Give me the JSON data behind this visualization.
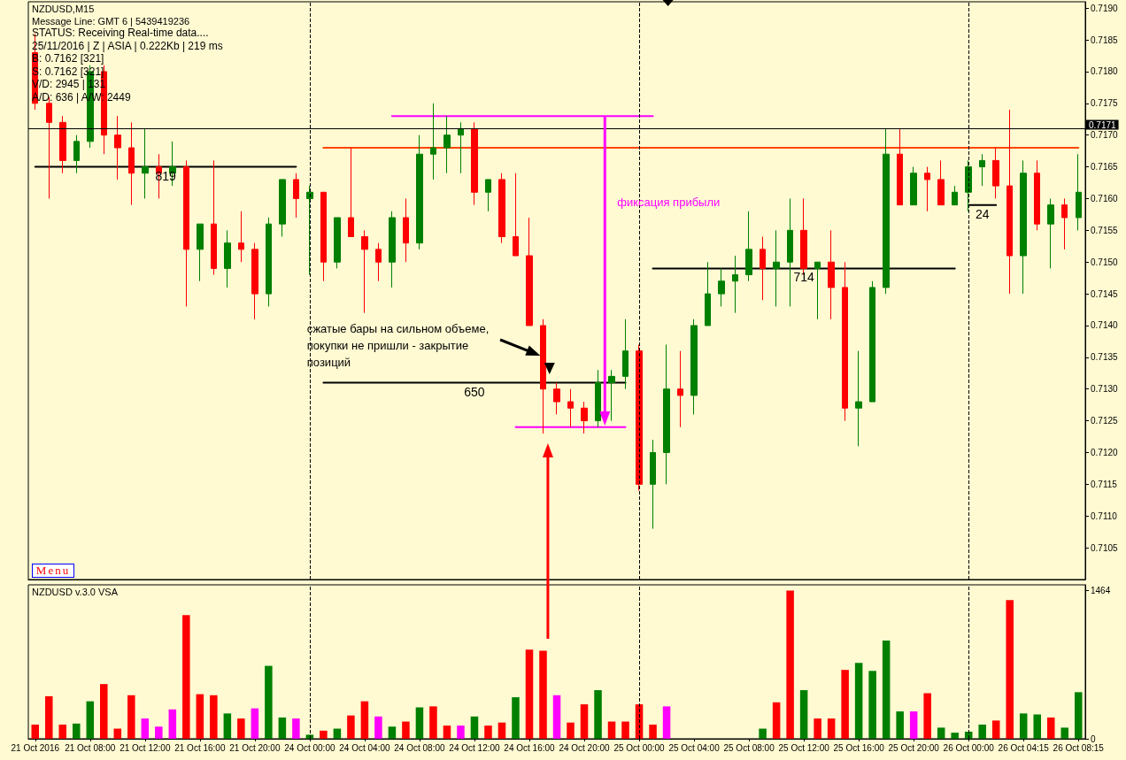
{
  "chart_data": [
    {
      "type": "candlestick",
      "title": "NZDUSD,M15",
      "annotations": [
        "Message Line: GMT 6 | 5439419236",
        "STATUS: Receiving Real-time data....",
        "25/11/2016 | Z | ASIA | 0.222Kb | 219 ms",
        "B: 0.7162 [321]",
        "S: 0.7162 [321]",
        "V/D: 2945 | 131",
        "A/D: 636 | A/W: 2449",
        "сжатые бары на сильном объеме,\nпокупки не пришли - закрытие\nпозиций",
        "фиксация прибыли",
        "Menu"
      ],
      "categories": [
        "21 Oct 2016",
        null,
        null,
        null,
        "21 Oct 08:00",
        null,
        null,
        null,
        "21 Oct 12:00",
        null,
        null,
        null,
        "21 Oct 16:00",
        null,
        null,
        null,
        "21 Oct 20:00",
        null,
        null,
        null,
        "24 Oct 00:00",
        null,
        null,
        null,
        "24 Oct 04:00",
        null,
        null,
        null,
        "24 Oct 08:00",
        null,
        null,
        null,
        "24 Oct 12:00",
        null,
        null,
        null,
        "24 Oct 16:00",
        null,
        null,
        null,
        "24 Oct 20:00",
        null,
        null,
        null,
        "25 Oct 00:00",
        null,
        null,
        null,
        "25 Oct 04:00",
        null,
        null,
        null,
        "25 Oct 08:00",
        null,
        null,
        null,
        "25 Oct 12:00",
        null,
        null,
        null,
        "25 Oct 16:00",
        null,
        null,
        null,
        "25 Oct 20:00",
        null,
        null,
        null,
        "26 Oct 00:00",
        null,
        null,
        null,
        "26 Oct 04:15",
        null,
        null,
        null,
        "26 Oct 08:15"
      ],
      "ohlc": [
        [
          0.7183,
          0.7186,
          0.7174,
          0.7175
        ],
        [
          0.7175,
          0.7176,
          0.716,
          0.7172
        ],
        [
          0.7172,
          0.7173,
          0.7164,
          0.7166
        ],
        [
          0.7166,
          0.717,
          0.7164,
          0.7169
        ],
        [
          0.7169,
          0.7181,
          0.7168,
          0.718
        ],
        [
          0.718,
          0.7181,
          0.7167,
          0.717
        ],
        [
          0.717,
          0.7173,
          0.7163,
          0.7168
        ],
        [
          0.7168,
          0.7172,
          0.7159,
          0.7164
        ],
        [
          0.7164,
          0.7171,
          0.716,
          0.7165
        ],
        [
          0.7165,
          0.7167,
          0.716,
          0.7164
        ],
        [
          0.7164,
          0.7169,
          0.7162,
          0.7165
        ],
        [
          0.7165,
          0.7166,
          0.7143,
          0.7152
        ],
        [
          0.7152,
          0.7156,
          0.7147,
          0.7156
        ],
        [
          0.7156,
          0.7166,
          0.7148,
          0.7149
        ],
        [
          0.7149,
          0.7155,
          0.7146,
          0.7153
        ],
        [
          0.7153,
          0.7158,
          0.715,
          0.7152
        ],
        [
          0.7152,
          0.7153,
          0.7141,
          0.7145
        ],
        [
          0.7145,
          0.7157,
          0.7143,
          0.7156
        ],
        [
          0.7156,
          0.7163,
          0.7154,
          0.7163
        ],
        [
          0.7163,
          0.7164,
          0.7157,
          0.716
        ],
        [
          0.716,
          0.7162,
          0.7148,
          0.7161
        ],
        [
          0.7161,
          0.7161,
          0.7147,
          0.715
        ],
        [
          0.715,
          0.7157,
          0.7149,
          0.7157
        ],
        [
          0.7157,
          0.7168,
          0.7154,
          0.7154
        ],
        [
          0.7154,
          0.7155,
          0.7142,
          0.7152
        ],
        [
          0.7152,
          0.7153,
          0.7147,
          0.715
        ],
        [
          0.715,
          0.7158,
          0.7146,
          0.7157
        ],
        [
          0.7157,
          0.716,
          0.715,
          0.7153
        ],
        [
          0.7153,
          0.717,
          0.7152,
          0.7167
        ],
        [
          0.7167,
          0.7175,
          0.7163,
          0.7168
        ],
        [
          0.7168,
          0.7173,
          0.7164,
          0.717
        ],
        [
          0.717,
          0.7172,
          0.7164,
          0.7171
        ],
        [
          0.7171,
          0.7172,
          0.7159,
          0.7161
        ],
        [
          0.7161,
          0.7163,
          0.7158,
          0.7163
        ],
        [
          0.7163,
          0.7164,
          0.7153,
          0.7154
        ],
        [
          0.7154,
          0.7164,
          0.7151,
          0.7151
        ],
        [
          0.7151,
          0.7157,
          0.714,
          0.714
        ],
        [
          0.714,
          0.7141,
          0.7123,
          0.713
        ],
        [
          0.713,
          0.7131,
          0.7126,
          0.7128
        ],
        [
          0.7128,
          0.713,
          0.7124,
          0.7127
        ],
        [
          0.7127,
          0.7128,
          0.7123,
          0.7125
        ],
        [
          0.7125,
          0.7133,
          0.7124,
          0.7131
        ],
        [
          0.7131,
          0.7133,
          0.7125,
          0.7132
        ],
        [
          0.7132,
          0.7141,
          0.713,
          0.7136
        ],
        [
          0.7136,
          0.7137,
          0.7114,
          0.7115
        ],
        [
          0.7115,
          0.7122,
          0.7108,
          0.712
        ],
        [
          0.712,
          0.7137,
          0.7115,
          0.713
        ],
        [
          0.713,
          0.7136,
          0.7124,
          0.7129
        ],
        [
          0.7129,
          0.7141,
          0.7126,
          0.714
        ],
        [
          0.714,
          0.715,
          0.714,
          0.7145
        ],
        [
          0.7145,
          0.7149,
          0.7143,
          0.7147
        ],
        [
          0.7147,
          0.7151,
          0.7142,
          0.7148
        ],
        [
          0.7148,
          0.7158,
          0.7147,
          0.7152
        ],
        [
          0.7152,
          0.7154,
          0.7144,
          0.7149
        ],
        [
          0.7149,
          0.7155,
          0.7143,
          0.715
        ],
        [
          0.715,
          0.716,
          0.7143,
          0.7155
        ],
        [
          0.7155,
          0.716,
          0.7148,
          0.7149
        ],
        [
          0.7149,
          0.715,
          0.7141,
          0.715
        ],
        [
          0.715,
          0.7155,
          0.7141,
          0.7146
        ],
        [
          0.7146,
          0.715,
          0.7125,
          0.7127
        ],
        [
          0.7127,
          0.7136,
          0.7121,
          0.7128
        ],
        [
          0.7128,
          0.7147,
          0.7128,
          0.7146
        ],
        [
          0.7146,
          0.7171,
          0.7145,
          0.7167
        ],
        [
          0.7167,
          0.7171,
          0.7159,
          0.7159
        ],
        [
          0.7159,
          0.7165,
          0.7159,
          0.7164
        ],
        [
          0.7164,
          0.7165,
          0.7158,
          0.7163
        ],
        [
          0.7163,
          0.7166,
          0.7159,
          0.7159
        ],
        [
          0.7159,
          0.7162,
          0.7159,
          0.7161
        ],
        [
          0.7161,
          0.7166,
          0.7158,
          0.7165
        ],
        [
          0.7165,
          0.7167,
          0.7162,
          0.7166
        ],
        [
          0.7166,
          0.7168,
          0.716,
          0.7162
        ],
        [
          0.7162,
          0.7174,
          0.7145,
          0.7151
        ],
        [
          0.7151,
          0.7166,
          0.7145,
          0.7164
        ],
        [
          0.7164,
          0.7166,
          0.7155,
          0.7156
        ],
        [
          0.7156,
          0.716,
          0.7149,
          0.7159
        ],
        [
          0.7159,
          0.716,
          0.7152,
          0.7157
        ],
        [
          0.7157,
          0.7167,
          0.7155,
          0.7161
        ]
      ],
      "colors": [
        "#ff0000",
        "#ff0000",
        "#ff0000",
        "#008000",
        "#008000",
        "#ff0000",
        "#ff0000",
        "#ff0000",
        "#008000",
        "#ff0000",
        "#008000",
        "#ff0000",
        "#008000",
        "#ff0000",
        "#008000",
        "#ff0000",
        "#ff0000",
        "#008000",
        "#008000",
        "#ff0000",
        "#008000",
        "#ff0000",
        "#008000",
        "#ff0000",
        "#ff0000",
        "#ff0000",
        "#008000",
        "#ff0000",
        "#008000",
        "#008000",
        "#008000",
        "#008000",
        "#ff0000",
        "#008000",
        "#ff0000",
        "#ff0000",
        "#ff0000",
        "#ff0000",
        "#ff0000",
        "#ff0000",
        "#ff0000",
        "#008000",
        "#008000",
        "#008000",
        "#ff0000",
        "#008000",
        "#008000",
        "#ff0000",
        "#008000",
        "#008000",
        "#008000",
        "#008000",
        "#008000",
        "#ff0000",
        "#008000",
        "#008000",
        "#ff0000",
        "#008000",
        "#ff0000",
        "#ff0000",
        "#008000",
        "#008000",
        "#008000",
        "#ff0000",
        "#008000",
        "#ff0000",
        "#ff0000",
        "#008000",
        "#008000",
        "#008000",
        "#ff0000",
        "#ff0000",
        "#008000",
        "#ff0000",
        "#008000",
        "#ff0000",
        "#008000"
      ],
      "series": [
        {
          "type": "line",
          "name": "819",
          "color": "#000000",
          "values": [
            0.7165,
            0.7165,
            0.7165,
            0.7165,
            0.7165,
            0.7165,
            0.7165,
            null,
            0.7165,
            0.7165,
            0.7165,
            0.7165,
            0.7165,
            0.7165,
            0.7165,
            0.7165,
            0.7165,
            0.7165,
            0.7165,
            0.7165,
            null,
            null,
            null,
            null,
            null,
            null,
            null,
            null,
            null,
            null,
            null,
            null,
            null,
            null,
            null,
            null,
            null,
            null,
            null,
            null,
            null,
            null,
            null,
            null,
            null,
            null,
            null,
            null,
            null,
            null,
            null,
            null,
            null,
            null,
            null,
            null,
            null,
            null,
            null,
            null,
            null,
            null,
            null,
            null,
            null,
            null,
            null,
            null,
            null,
            null,
            null,
            null,
            null,
            null,
            null,
            null,
            null
          ]
        },
        {
          "type": "line",
          "name": "650",
          "color": "#000000",
          "values": [
            null,
            null,
            null,
            null,
            null,
            null,
            null,
            null,
            null,
            null,
            null,
            null,
            null,
            null,
            null,
            null,
            null,
            null,
            null,
            null,
            null,
            0.7131,
            0.7131,
            0.7131,
            0.7131,
            0.7131,
            0.7131,
            0.7131,
            0.7131,
            0.7131,
            0.7131,
            0.7131,
            0.7131,
            0.7131,
            0.7131,
            0.7131,
            0.7131,
            null,
            0.7131,
            0.7131,
            0.7131,
            0.7131,
            0.7131,
            0.7131,
            null,
            null,
            null,
            null,
            null,
            null,
            null,
            null,
            null,
            null,
            null,
            null,
            null,
            null,
            null,
            null,
            null,
            null,
            null,
            null,
            null,
            null,
            null,
            null,
            null,
            null,
            null,
            null,
            null,
            null,
            null,
            null,
            null
          ]
        },
        {
          "type": "line",
          "name": "714",
          "color": "#000000",
          "values": [
            null,
            null,
            null,
            null,
            null,
            null,
            null,
            null,
            null,
            null,
            null,
            null,
            null,
            null,
            null,
            null,
            null,
            null,
            null,
            null,
            null,
            null,
            null,
            null,
            null,
            null,
            null,
            null,
            null,
            null,
            null,
            null,
            null,
            null,
            null,
            null,
            null,
            null,
            null,
            null,
            null,
            null,
            null,
            null,
            null,
            0.7149,
            0.7149,
            0.7149,
            0.7149,
            0.7149,
            0.7149,
            0.7149,
            null,
            0.7149,
            0.7149,
            0.7149,
            0.7149,
            0.7149,
            null,
            0.7149,
            0.7149,
            0.7149,
            null,
            0.7149,
            0.7149,
            0.7149,
            0.7149,
            0.7149,
            null,
            null,
            null,
            null,
            null,
            null,
            null,
            null,
            null
          ]
        },
        {
          "type": "line",
          "name": "24",
          "color": "#000000",
          "values": [
            null,
            null,
            null,
            null,
            null,
            null,
            null,
            null,
            null,
            null,
            null,
            null,
            null,
            null,
            null,
            null,
            null,
            null,
            null,
            null,
            null,
            null,
            null,
            null,
            null,
            null,
            null,
            null,
            null,
            null,
            null,
            null,
            null,
            null,
            null,
            null,
            null,
            null,
            null,
            null,
            null,
            null,
            null,
            null,
            null,
            null,
            null,
            null,
            null,
            null,
            null,
            null,
            null,
            null,
            null,
            null,
            null,
            null,
            null,
            null,
            null,
            null,
            null,
            null,
            null,
            null,
            null,
            null,
            0.7159,
            0.7159,
            0.7159,
            null,
            null,
            null,
            null,
            null,
            null
          ]
        },
        {
          "type": "line",
          "color": "#ff4500",
          "values": [
            null,
            null,
            null,
            null,
            null,
            null,
            null,
            null,
            null,
            null,
            null,
            null,
            null,
            null,
            null,
            null,
            null,
            null,
            null,
            null,
            null,
            0.7168,
            0.7168,
            0.7168,
            0.7168,
            0.7168,
            0.7168,
            0.7168,
            0.7168,
            0.7168,
            0.7168,
            0.7168,
            null,
            0.7168,
            0.7168,
            0.7168,
            0.7168,
            0.7168,
            0.7168,
            0.7168,
            0.7168,
            0.7168,
            0.7168,
            0.7168,
            0.7168,
            0.7168,
            0.7168,
            0.7168,
            0.7168,
            0.7168,
            0.7168,
            0.7168,
            0.7168,
            0.7168,
            0.7168,
            0.7168,
            0.7168,
            0.7168,
            0.7168,
            0.7168,
            0.7168,
            0.7168,
            0.7168,
            0.7168,
            0.7168,
            0.7168,
            0.7168,
            0.7168,
            0.7168,
            0.7168,
            0.7168,
            0.7168,
            0.7168,
            0.7168,
            0.7168,
            0.7168,
            0.7168
          ]
        },
        {
          "type": "line",
          "color": "#ff00ff",
          "values": [
            null,
            null,
            null,
            null,
            null,
            null,
            null,
            null,
            null,
            null,
            null,
            null,
            null,
            null,
            null,
            null,
            null,
            null,
            null,
            null,
            null,
            null,
            null,
            null,
            null,
            null,
            0.7173,
            0.7173,
            0.7173,
            0.7173,
            0.7173,
            0.7173,
            0.7173,
            0.7173,
            0.7173,
            0.7173,
            0.7173,
            0.7173,
            0.7173,
            0.7173,
            0.7173,
            0.7173,
            0.7173,
            0.7173,
            0.7173,
            0.7173,
            null,
            null,
            null,
            null,
            null,
            null,
            null,
            null,
            null,
            null,
            null,
            null,
            null,
            null,
            null,
            null,
            null,
            null,
            null,
            null,
            null,
            null,
            null,
            null,
            null,
            null,
            null,
            null,
            null,
            null,
            null
          ]
        },
        {
          "type": "line",
          "color": "#ff00ff",
          "values": [
            null,
            null,
            null,
            null,
            null,
            null,
            null,
            null,
            null,
            null,
            null,
            null,
            null,
            null,
            null,
            null,
            null,
            null,
            null,
            null,
            null,
            null,
            null,
            null,
            null,
            null,
            null,
            null,
            null,
            null,
            null,
            null,
            null,
            null,
            null,
            0.7124,
            0.7124,
            0.7124,
            0.7124,
            0.7124,
            0.7124,
            0.7124,
            0.7124,
            0.7124,
            null,
            null,
            null,
            null,
            null,
            null,
            null,
            null,
            null,
            null,
            null,
            null,
            null,
            null,
            null,
            null,
            null,
            null,
            null,
            null,
            null,
            null,
            null,
            null,
            null,
            null,
            null,
            null,
            null,
            null,
            null,
            null,
            null
          ]
        }
      ],
      "ylim": [
        0.71,
        0.7191
      ],
      "yticks": [
        0.7105,
        {
          "value": 0.711,
          "label": "0.7110"
        },
        0.7115,
        {
          "value": 0.712,
          "label": "0.7120"
        },
        0.7125,
        {
          "value": 0.713,
          "label": "0.7130"
        },
        0.7135,
        {
          "value": 0.714,
          "label": "0.7140"
        },
        0.7145,
        {
          "value": 0.715,
          "label": "0.7150"
        },
        0.7155,
        {
          "value": 0.716,
          "label": "0.7160"
        },
        0.7165,
        {
          "value": 0.717,
          "label": "0.7170"
        },
        0.7175,
        {
          "value": 0.718,
          "label": "0.7180"
        },
        0.7185,
        {
          "value": 0.719,
          "label": "0.7190"
        }
      ],
      "ref_lines": [
        {
          "axis": "y",
          "value": 0.7171,
          "label": "0.7171",
          "color": "#000000"
        },
        {
          "axis": "x",
          "value": "24 Oct 00:00",
          "color": "#000000",
          "line_style": "dashed"
        },
        {
          "axis": "x",
          "value": "25 Oct 00:00",
          "color": "#000000",
          "line_style": "dashed"
        },
        {
          "axis": "x",
          "value": "26 Oct 00:00",
          "color": "#000000",
          "line_style": "dashed"
        }
      ],
      "tick_labels": "y"
    },
    {
      "type": "bar",
      "title": "NZDUSD v.3.0 VSA",
      "categories": [
        "21 Oct 2016",
        null,
        null,
        null,
        "21 Oct 08:00",
        null,
        null,
        null,
        "21 Oct 12:00",
        null,
        null,
        null,
        "21 Oct 16:00",
        null,
        null,
        null,
        "21 Oct 20:00",
        null,
        null,
        null,
        "24 Oct 00:00",
        null,
        null,
        null,
        "24 Oct 04:00",
        null,
        null,
        null,
        "24 Oct 08:00",
        null,
        null,
        null,
        "24 Oct 12:00",
        null,
        null,
        null,
        "24 Oct 16:00",
        null,
        null,
        null,
        "24 Oct 20:00",
        null,
        null,
        null,
        "25 Oct 00:00",
        null,
        null,
        null,
        "25 Oct 04:00",
        null,
        null,
        null,
        "25 Oct 08:00",
        null,
        null,
        null,
        "25 Oct 12:00",
        null,
        null,
        null,
        "25 Oct 16:00",
        null,
        null,
        null,
        "25 Oct 20:00",
        null,
        null,
        null,
        "26 Oct 00:00",
        null,
        null,
        null,
        "26 Oct 04:15",
        null,
        null,
        null,
        "26 Oct 08:15"
      ],
      "values": [
        140,
        420,
        140,
        150,
        370,
        540,
        100,
        430,
        200,
        120,
        290,
        1220,
        440,
        430,
        250,
        200,
        300,
        720,
        210,
        200,
        40,
        80,
        100,
        230,
        370,
        220,
        120,
        170,
        310,
        320,
        130,
        130,
        220,
        130,
        160,
        410,
        880,
        870,
        430,
        160,
        340,
        480,
        170,
        170,
        340,
        140,
        320,
        null,
        null,
        null,
        null,
        null,
        null,
        100,
        360,
        1464,
        480,
        200,
        200,
        680,
        750,
        670,
        970,
        270,
        270,
        450,
        110,
        60,
        70,
        140,
        180,
        1370,
        250,
        240,
        210,
        110,
        460
      ],
      "colors": [
        "#ff0000",
        "#ff0000",
        "#ff0000",
        "#008000",
        "#008000",
        "#ff0000",
        "#ff0000",
        "#ff0000",
        "#ff00ff",
        "#ff00ff",
        "#ff00ff",
        "#ff0000",
        "#ff0000",
        "#ff0000",
        "#008000",
        "#ff0000",
        "#ff00ff",
        "#008000",
        "#008000",
        "#ff00ff",
        "#008000",
        "#ff0000",
        "#008000",
        "#ff0000",
        "#ff0000",
        "#ff00ff",
        "#008000",
        "#ff0000",
        "#008000",
        "#ff0000",
        "#ff0000",
        "#ff00ff",
        "#008000",
        "#ff0000",
        "#ff0000",
        "#008000",
        "#ff0000",
        "#ff0000",
        "#ff00ff",
        "#ff0000",
        "#ff0000",
        "#008000",
        "#ff0000",
        "#ff0000",
        "#ff0000",
        "#ff0000",
        "#ff00ff",
        null,
        null,
        null,
        null,
        null,
        null,
        "#008000",
        "#ff0000",
        "#ff0000",
        "#008000",
        "#ff0000",
        "#ff0000",
        "#ff0000",
        "#008000",
        "#008000",
        "#008000",
        "#008000",
        "#ff00ff",
        "#ff0000",
        "#008000",
        "#008000",
        "#008000",
        "#008000",
        "#ff0000",
        "#ff0000",
        "#008000",
        "#008000",
        "#ff0000",
        "#008000",
        "#008000"
      ],
      "ylim": [
        0,
        1520
      ],
      "yticks": [
        0,
        1464
      ],
      "ref_lines": [
        {
          "axis": "x",
          "value": "24 Oct 00:00",
          "color": "#000000",
          "line_style": "dashed"
        },
        {
          "axis": "x",
          "value": "25 Oct 00:00",
          "color": "#000000",
          "line_style": "dashed"
        },
        {
          "axis": "x",
          "value": "26 Oct 00:00",
          "color": "#000000",
          "line_style": "dashed"
        }
      ]
    }
  ]
}
